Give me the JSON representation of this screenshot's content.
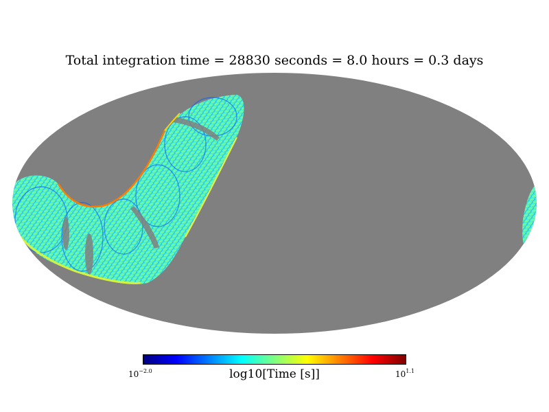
{
  "title": "Total integration time = 28830 seconds = 8.0 hours = 0.3 days",
  "projection": "mollweide",
  "background_color": "#808080",
  "colormap": "jet",
  "colormap_stops": [
    "#00007f",
    "#0000ff",
    "#007fff",
    "#00ffff",
    "#7fff7f",
    "#ffff00",
    "#ff7f00",
    "#ff0000",
    "#7f0000"
  ],
  "colorbar": {
    "label": "log10[Time [s]]",
    "min_base": "10",
    "min_exp": "−2.0",
    "max_base": "10",
    "max_exp": "1.1"
  }
}
